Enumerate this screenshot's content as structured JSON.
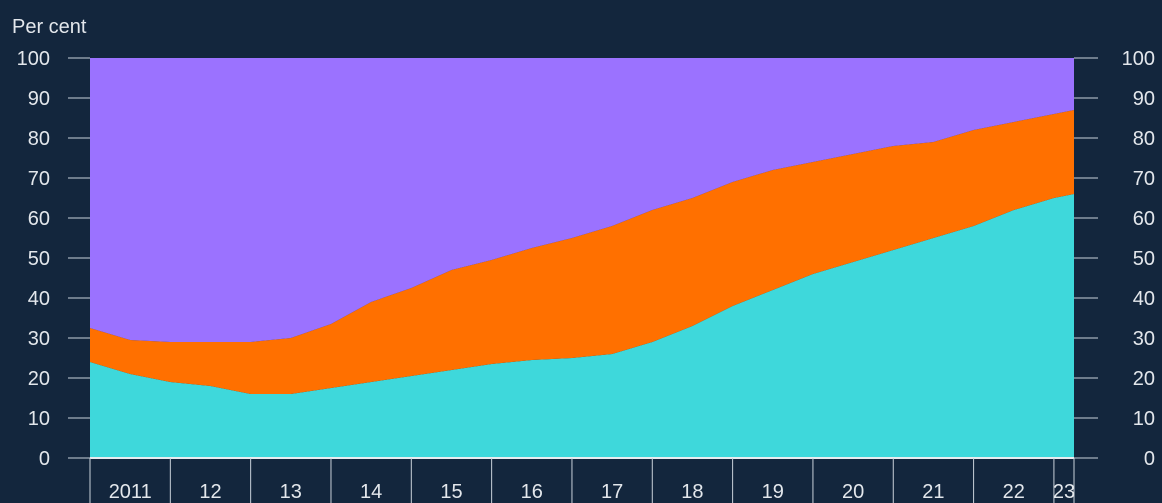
{
  "chart_data": {
    "type": "area",
    "stacked": true,
    "unit_label": "Per cent",
    "ylim": [
      0,
      100
    ],
    "y_ticks": [
      0,
      10,
      20,
      30,
      40,
      50,
      60,
      70,
      80,
      90,
      100
    ],
    "y_ticks_both_sides": true,
    "xlim": [
      2011.0,
      2023.25
    ],
    "x_tick_labels": [
      {
        "label": "2011",
        "x": 2011
      },
      {
        "label": "12",
        "x": 2012
      },
      {
        "label": "13",
        "x": 2013
      },
      {
        "label": "14",
        "x": 2014
      },
      {
        "label": "15",
        "x": 2015
      },
      {
        "label": "16",
        "x": 2016
      },
      {
        "label": "17",
        "x": 2017
      },
      {
        "label": "18",
        "x": 2018
      },
      {
        "label": "19",
        "x": 2019
      },
      {
        "label": "20",
        "x": 2020
      },
      {
        "label": "21",
        "x": 2021
      },
      {
        "label": "22",
        "x": 2022
      },
      {
        "label": "23",
        "x": 2023
      }
    ],
    "x": [
      2011.0,
      2011.5,
      2012.0,
      2012.5,
      2013.0,
      2013.5,
      2014.0,
      2014.5,
      2015.0,
      2015.5,
      2016.0,
      2016.5,
      2017.0,
      2017.5,
      2018.0,
      2018.5,
      2019.0,
      2019.5,
      2020.0,
      2020.5,
      2021.0,
      2021.5,
      2022.0,
      2022.5,
      2023.0,
      2023.25
    ],
    "series": [
      {
        "color": "#3ed8db",
        "values": [
          24,
          21,
          19,
          18,
          16,
          16,
          17.5,
          19,
          20.5,
          22,
          23.5,
          24.5,
          25,
          26,
          29,
          33,
          38,
          42,
          46,
          49,
          52,
          55,
          58,
          62,
          65,
          66
        ]
      },
      {
        "color": "#ff7000",
        "values": [
          8.5,
          8.5,
          10,
          11,
          13,
          14,
          16,
          20,
          22,
          25,
          26,
          28,
          30,
          32,
          33,
          32,
          31,
          30,
          28,
          27,
          26,
          24,
          24,
          22,
          21,
          21
        ]
      },
      {
        "color": "#9b72ff",
        "values": [
          67.5,
          70.5,
          71,
          71,
          71,
          70,
          66.5,
          61,
          57.5,
          53,
          50.5,
          47.5,
          45,
          42,
          38,
          35,
          31,
          28,
          26,
          24,
          22,
          21,
          18,
          16,
          14,
          13
        ]
      }
    ]
  }
}
